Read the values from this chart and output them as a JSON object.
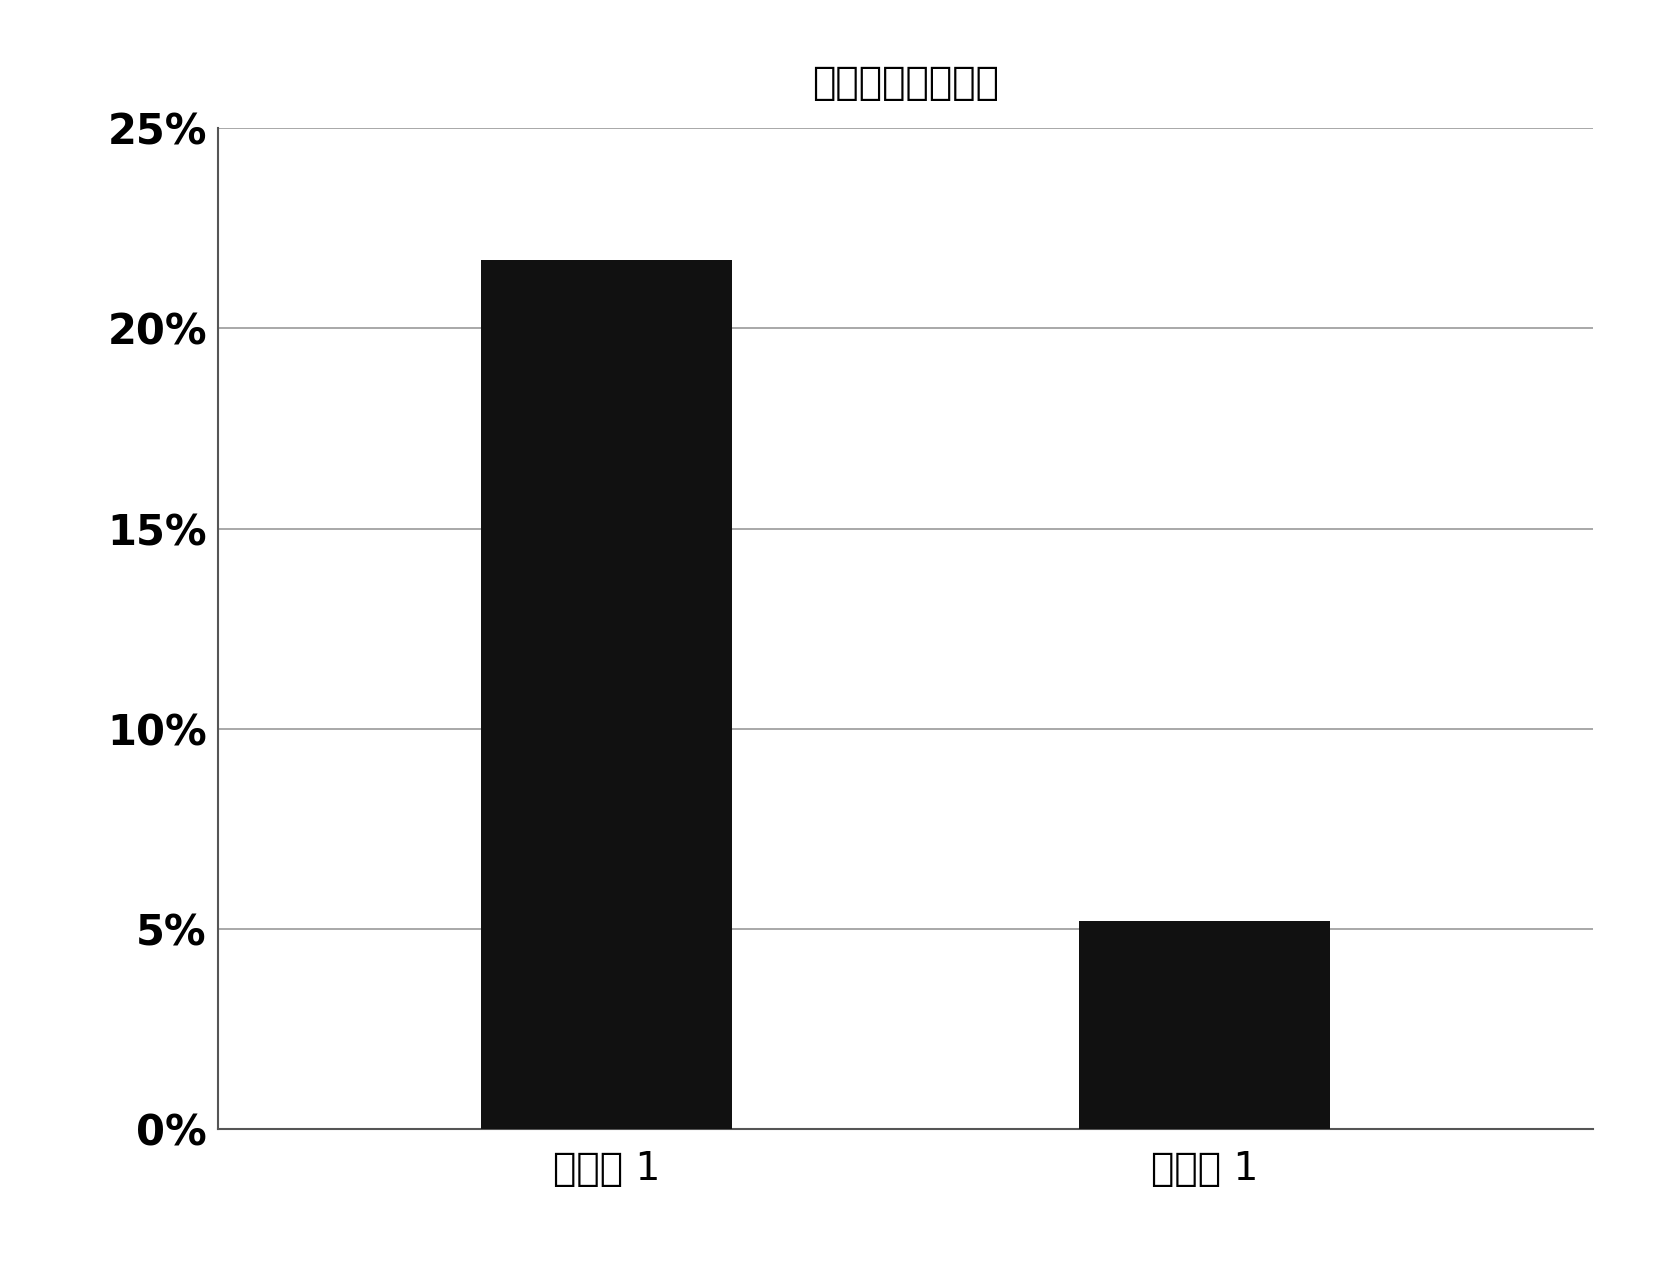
{
  "title": "成型后的厚度增加",
  "categories": [
    "比较例 1",
    "实施例 1"
  ],
  "values": [
    0.217,
    0.052
  ],
  "bar_color": "#111111",
  "bar_width": 0.42,
  "ylim": [
    0,
    0.25
  ],
  "yticks": [
    0.0,
    0.05,
    0.1,
    0.15,
    0.2,
    0.25
  ],
  "ytick_labels": [
    "0%",
    "5%",
    "10%",
    "15%",
    "20%",
    "25%"
  ],
  "background_color": "#ffffff",
  "title_fontsize": 28,
  "tick_fontsize": 30,
  "xlabel_fontsize": 28,
  "grid_color": "#999999",
  "bar_positions": [
    1,
    2
  ],
  "xlim": [
    0.35,
    2.65
  ]
}
